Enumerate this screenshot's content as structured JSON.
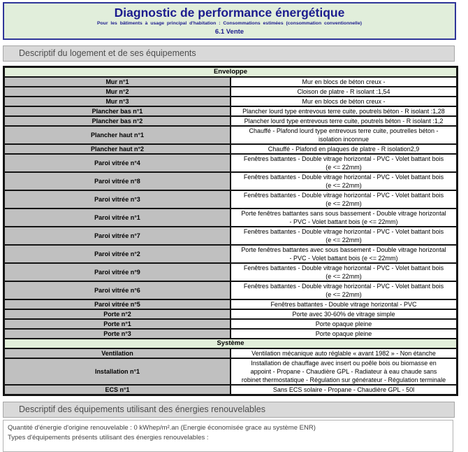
{
  "header": {
    "title": "Diagnostic de performance énergétique",
    "subtitle": "Pour les bâtiments à usage principal d'habitation : Consommations estimées (consommation conventionnelle)",
    "version": "6.1 Vente"
  },
  "bars": {
    "logement": "Descriptif du logement et de ses équipements",
    "renouvelables": "Descriptif des équipements utilisant des énergies renouvelables"
  },
  "table": {
    "groups": [
      {
        "header": "Enveloppe",
        "rows": [
          {
            "label": "Mur n°1",
            "value": "Mur en blocs de béton creux -"
          },
          {
            "label": "Mur n°2",
            "value": "Cloison de platre - R isolant :1,54"
          },
          {
            "label": "Mur n°3",
            "value": "Mur en blocs de béton creux -"
          },
          {
            "label": "Plancher bas n°1",
            "value": "Plancher lourd type entrevous terre cuite, poutrels béton - R isolant :1,28"
          },
          {
            "label": "Plancher bas n°2",
            "value": "Plancher lourd type entrevous terre cuite, poutrels béton - R isolant :1,2"
          },
          {
            "label": "Plancher haut n°1",
            "value": "Chauffé - Plafond lourd type entrevous terre cuite, poutrelles béton - isolation inconnue"
          },
          {
            "label": "Plancher haut n°2",
            "value": "Chauffé - Plafond en plaques de platre - R isolation2,9"
          },
          {
            "label": "Paroi vitrée n°4",
            "value": "Fenêtres battantes - Double vitrage horizontal - PVC - Volet battant bois (e <= 22mm)"
          },
          {
            "label": "Paroi vitrée n°8",
            "value": "Fenêtres battantes - Double vitrage horizontal - PVC - Volet battant bois (e <= 22mm)"
          },
          {
            "label": "Paroi vitrée n°3",
            "value": "Fenêtres battantes - Double vitrage horizontal - PVC - Volet battant bois (e <= 22mm)"
          },
          {
            "label": "Paroi vitrée n°1",
            "value": "Porte fenêtres battantes sans sous bassement - Double vitrage horizontal - PVC - Volet battant bois (e <= 22mm)"
          },
          {
            "label": "Paroi vitrée n°7",
            "value": "Fenêtres battantes - Double vitrage horizontal - PVC - Volet battant bois (e <= 22mm)"
          },
          {
            "label": "Paroi vitrée n°2",
            "value": "Porte fenêtres battantes avec sous bassement - Double vitrage horizontal - PVC - Volet battant bois (e <= 22mm)"
          },
          {
            "label": "Paroi vitrée n°9",
            "value": "Fenêtres battantes - Double vitrage horizontal - PVC - Volet battant bois (e <= 22mm)"
          },
          {
            "label": "Paroi vitrée n°6",
            "value": "Fenêtres battantes - Double vitrage horizontal - PVC - Volet battant bois (e <= 22mm)"
          },
          {
            "label": "Paroi vitrée n°5",
            "value": "Fenêtres battantes - Double vitrage horizontal - PVC"
          },
          {
            "label": "Porte n°2",
            "value": "Porte avec 30-60% de vitrage simple"
          },
          {
            "label": "Porte n°1",
            "value": "Porte opaque pleine"
          },
          {
            "label": "Porte n°3",
            "value": "Porte opaque pleine"
          }
        ]
      },
      {
        "header": "Système",
        "rows": [
          {
            "label": "Ventilation",
            "value": "Ventilation mécanique auto réglable « avant 1982 » - Non étanche"
          },
          {
            "label": "Installation n°1",
            "value": "Installation de chauffage avec insert ou poêle bois ou biomasse en appoint - Propane - Chaudière GPL - Radiateur à eau chaude sans robinet thermostatique - Régulation sur générateur - Régulation terminale"
          },
          {
            "label": "ECS n°1",
            "value": "Sans ECS solaire - Propane - Chaudière GPL - 50l"
          }
        ]
      }
    ]
  },
  "renewables": {
    "line1": "Quantité d'énergie d'origine renouvelable : 0 kWhep/m².an (Energie économisée grace au système ENR)",
    "line2": "Types d'équipements présents utilisant des énergies renouvelables :"
  },
  "colors": {
    "title_navy": "#1c1c8e",
    "header_border_blue": "#2f3699",
    "header_bg_green": "#e1eedb",
    "group_header_green": "#e2efda",
    "bar_gray": "#d9d9d9",
    "label_cell_gray": "#c0c0c0"
  }
}
